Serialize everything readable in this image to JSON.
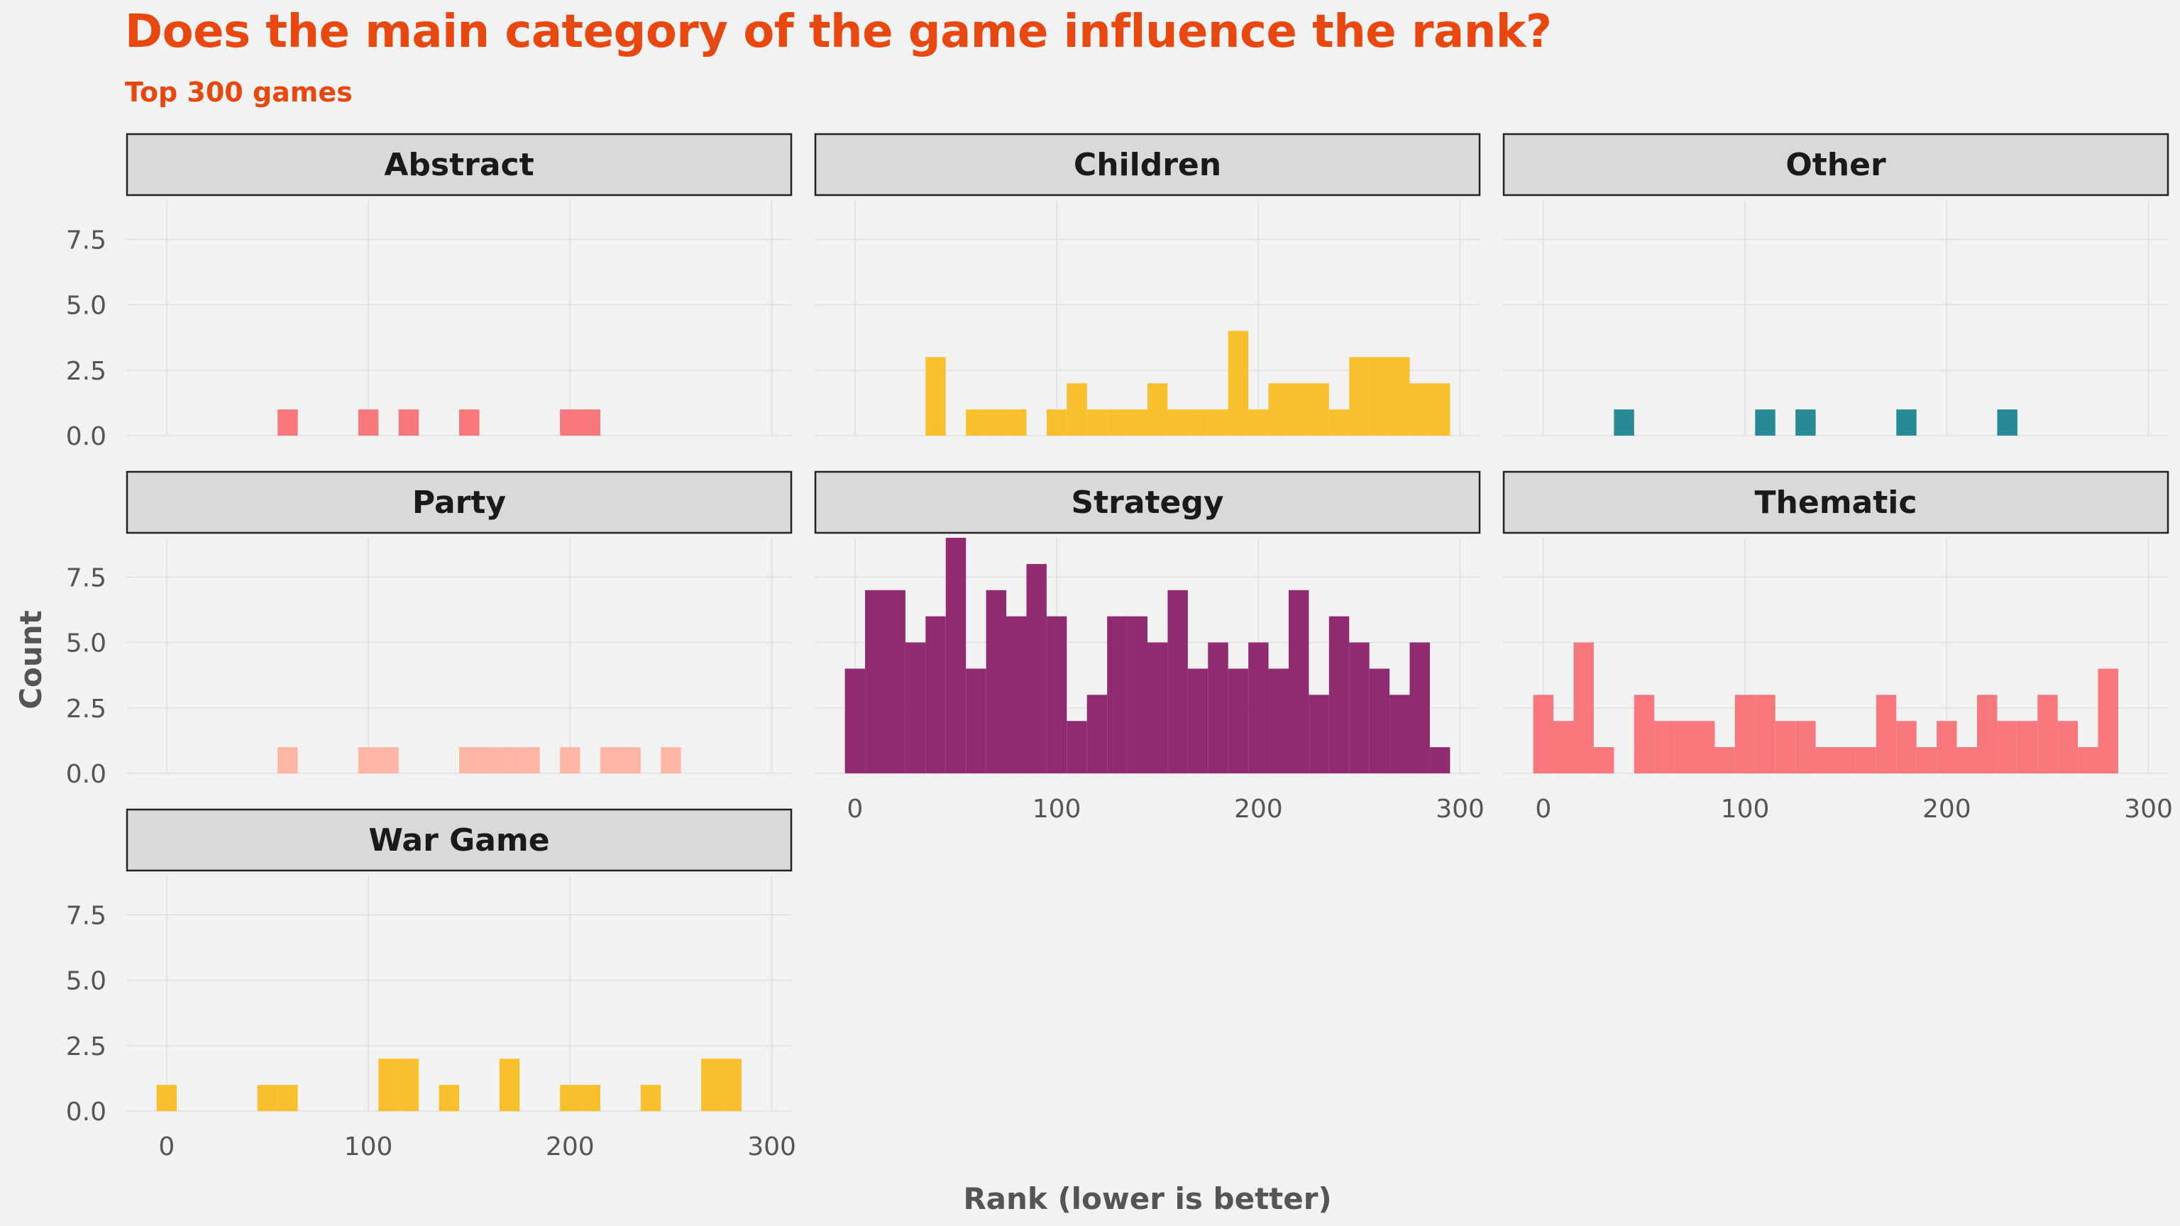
{
  "chart_data": {
    "type": "bar",
    "title": "Does the main category of the game influence the rank?",
    "subtitle": "Top 300 games",
    "xlabel": "Rank (lower is better)",
    "ylabel": "Count",
    "xlim": [
      -20,
      310
    ],
    "ylim": [
      0,
      9
    ],
    "x_ticks": [
      "0",
      "100",
      "200",
      "300"
    ],
    "y_ticks": [
      "0.0",
      "2.5",
      "5.0",
      "7.5"
    ],
    "bin_width": 10,
    "grid": true,
    "legend": "none",
    "bin_centers": [
      0,
      10,
      20,
      30,
      40,
      50,
      60,
      70,
      80,
      90,
      100,
      110,
      120,
      130,
      140,
      150,
      160,
      170,
      180,
      190,
      200,
      210,
      220,
      230,
      240,
      250,
      260,
      270,
      280,
      290,
      300
    ],
    "series": [
      {
        "name": "Abstract",
        "color": "#f8777d",
        "values": [
          0,
          0,
          0,
          0,
          0,
          0,
          1,
          0,
          0,
          0,
          1,
          0,
          1,
          0,
          0,
          1,
          0,
          0,
          0,
          0,
          1,
          1,
          0,
          0,
          0,
          0,
          0,
          0,
          0,
          0,
          0
        ]
      },
      {
        "name": "Children",
        "color": "#f9c02d",
        "values": [
          0,
          0,
          0,
          0,
          3,
          0,
          1,
          1,
          1,
          0,
          1,
          2,
          1,
          1,
          1,
          2,
          1,
          1,
          1,
          4,
          1,
          2,
          2,
          2,
          1,
          3,
          3,
          3,
          2,
          2,
          0
        ]
      },
      {
        "name": "Other",
        "color": "#288a94",
        "values": [
          0,
          0,
          0,
          0,
          1,
          0,
          0,
          0,
          0,
          0,
          0,
          1,
          0,
          1,
          0,
          0,
          0,
          0,
          1,
          0,
          0,
          0,
          0,
          1,
          0,
          0,
          0,
          0,
          0,
          0,
          0
        ]
      },
      {
        "name": "Party",
        "color": "#fdb6a4",
        "values": [
          0,
          0,
          0,
          0,
          0,
          0,
          1,
          0,
          0,
          0,
          1,
          1,
          0,
          0,
          0,
          1,
          1,
          1,
          1,
          0,
          1,
          0,
          1,
          1,
          0,
          1,
          0,
          0,
          0,
          0,
          0
        ]
      },
      {
        "name": "Strategy",
        "color": "#8f2b6e",
        "values": [
          4,
          7,
          7,
          5,
          6,
          9,
          4,
          7,
          6,
          8,
          6,
          2,
          3,
          6,
          6,
          5,
          7,
          4,
          5,
          4,
          5,
          4,
          7,
          3,
          6,
          5,
          4,
          3,
          5,
          1,
          0
        ]
      },
      {
        "name": "Thematic",
        "color": "#f8777d",
        "values": [
          3,
          2,
          5,
          1,
          0,
          3,
          2,
          2,
          2,
          1,
          3,
          3,
          2,
          2,
          1,
          1,
          1,
          3,
          2,
          1,
          2,
          1,
          3,
          2,
          2,
          3,
          2,
          1,
          4,
          0,
          0
        ]
      },
      {
        "name": "War Game",
        "color": "#f9c02d",
        "values": [
          1,
          0,
          0,
          0,
          0,
          1,
          1,
          0,
          0,
          0,
          0,
          2,
          2,
          0,
          1,
          0,
          0,
          2,
          0,
          0,
          1,
          1,
          0,
          0,
          1,
          0,
          0,
          2,
          2,
          0,
          0
        ]
      }
    ]
  }
}
